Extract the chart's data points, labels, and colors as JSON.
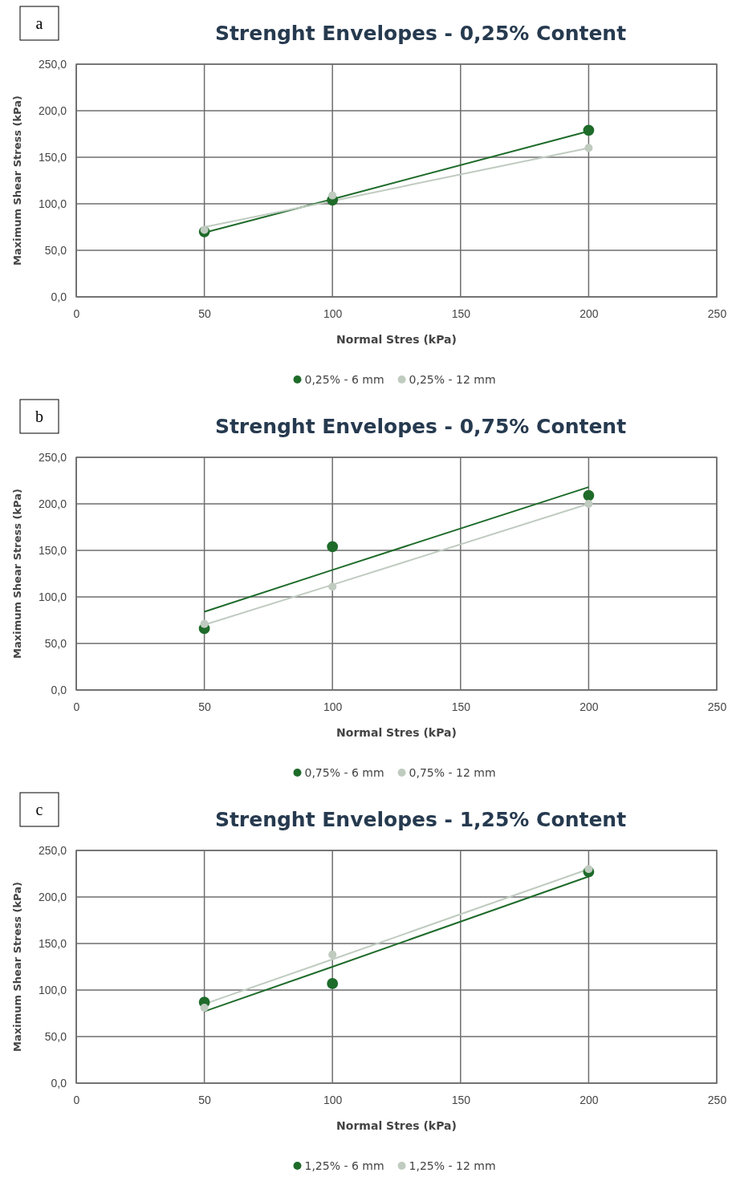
{
  "chart_data": [
    {
      "type": "scatter",
      "title": "Strenght Envelopes - 0,25% Content",
      "xlabel": "Normal Stres (kPa)",
      "ylabel": "Maximum Shear Stress (kPa)",
      "annotations": [
        "a"
      ],
      "xlim": [
        0,
        250
      ],
      "xticks": [
        0,
        50,
        100,
        150,
        200,
        250
      ],
      "ylim": [
        0,
        250
      ],
      "yticks": [
        {
          "value": 0,
          "label": "0,0"
        },
        {
          "value": 50,
          "label": "50,0"
        },
        {
          "value": 100,
          "label": "100,0"
        },
        {
          "value": 150,
          "label": "150,0"
        },
        {
          "value": 200,
          "label": "200,0"
        },
        {
          "value": 250,
          "label": "250,0"
        }
      ],
      "grid": true,
      "legend": "bottom",
      "marker": "circle",
      "x": [
        50,
        100,
        200
      ],
      "series": [
        {
          "name": "0,25% - 6 mm",
          "color": "#1e6b2a",
          "values": [
            70,
            104,
            179
          ]
        },
        {
          "name": "0,25% - 12 mm",
          "color": "#c0cbc0",
          "values": [
            72,
            109,
            160
          ]
        },
        {
          "type": "line",
          "color": "#1e6b2a",
          "values": [
            69,
            105,
            178
          ],
          "marker": "none",
          "line_style": "solid"
        },
        {
          "type": "line",
          "color": "#c0cbc0",
          "values": [
            75,
            103,
            160
          ],
          "marker": "none",
          "line_style": "solid"
        }
      ]
    },
    {
      "type": "scatter",
      "title": "Strenght Envelopes - 0,75% Content",
      "xlabel": "Normal Stres (kPa)",
      "ylabel": "Maximum Shear Stress (kPa)",
      "annotations": [
        "b"
      ],
      "xlim": [
        0,
        250
      ],
      "xticks": [
        0,
        50,
        100,
        150,
        200,
        250
      ],
      "ylim": [
        0,
        250
      ],
      "yticks": [
        {
          "value": 0,
          "label": "0,0"
        },
        {
          "value": 50,
          "label": "50,0"
        },
        {
          "value": 100,
          "label": "100,0"
        },
        {
          "value": 150,
          "label": "150,0"
        },
        {
          "value": 200,
          "label": "200,0"
        },
        {
          "value": 250,
          "label": "250,0"
        }
      ],
      "grid": true,
      "legend": "bottom",
      "marker": "circle",
      "x": [
        50,
        100,
        200
      ],
      "series": [
        {
          "name": "0,75% - 6 mm",
          "color": "#1e6b2a",
          "values": [
            66,
            154,
            209
          ]
        },
        {
          "name": "0,75% - 12 mm",
          "color": "#c0cbc0",
          "values": [
            71,
            111,
            200
          ]
        },
        {
          "type": "line",
          "color": "#1e6b2a",
          "values": [
            84,
            129,
            218
          ],
          "marker": "none",
          "line_style": "solid"
        },
        {
          "type": "line",
          "color": "#c0cbc0",
          "values": [
            70,
            113,
            200
          ],
          "marker": "none",
          "line_style": "solid"
        }
      ]
    },
    {
      "type": "scatter",
      "title": "Strenght Envelopes - 1,25% Content",
      "xlabel": "Normal Stres (kPa)",
      "ylabel": "Maximum Shear Stress (kPa)",
      "annotations": [
        "c"
      ],
      "xlim": [
        0,
        250
      ],
      "xticks": [
        0,
        50,
        100,
        150,
        200,
        250
      ],
      "ylim": [
        0,
        250
      ],
      "yticks": [
        {
          "value": 0,
          "label": "0,0"
        },
        {
          "value": 50,
          "label": "50,0"
        },
        {
          "value": 100,
          "label": "100,0"
        },
        {
          "value": 150,
          "label": "150,0"
        },
        {
          "value": 200,
          "label": "200,0"
        },
        {
          "value": 250,
          "label": "250,0"
        }
      ],
      "grid": true,
      "legend": "bottom",
      "marker": "circle",
      "x": [
        50,
        100,
        200
      ],
      "series": [
        {
          "name": "1,25% - 6 mm",
          "color": "#1e6b2a",
          "values": [
            87,
            107,
            227
          ]
        },
        {
          "name": "1,25% - 12 mm",
          "color": "#c0cbc0",
          "values": [
            81,
            138,
            230
          ]
        },
        {
          "type": "line",
          "color": "#1e6b2a",
          "values": [
            77,
            125,
            222
          ],
          "marker": "none",
          "line_style": "solid"
        },
        {
          "type": "line",
          "color": "#c0cbc0",
          "values": [
            85,
            133,
            230
          ],
          "marker": "none",
          "line_style": "solid"
        }
      ]
    }
  ]
}
